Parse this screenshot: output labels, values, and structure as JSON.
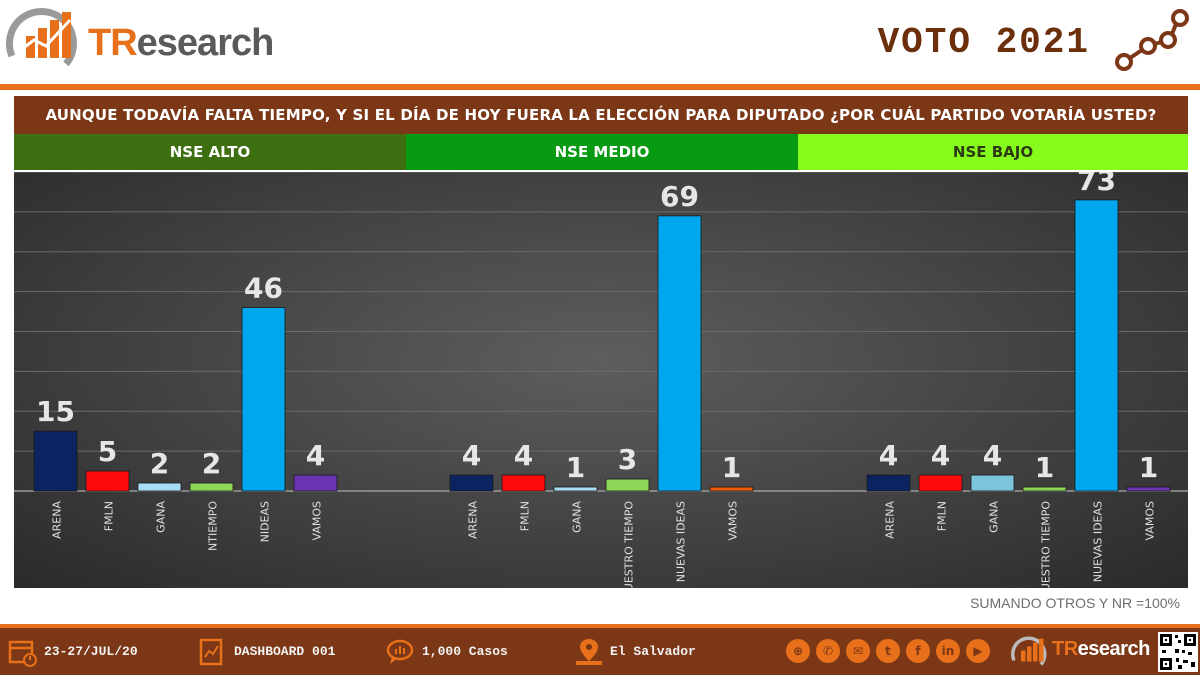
{
  "header": {
    "brand_prefix": "TR",
    "brand_suffix": "esearch",
    "title": "VOTO 2021"
  },
  "question": "AUNQUE TODAVÍA FALTA TIEMPO, Y SI EL DÍA DE HOY FUERA LA ELECCIÓN PARA DIPUTADO ¿POR CUÁL PARTIDO VOTARÍA USTED?",
  "segments": [
    "NSE ALTO",
    "NSE MEDIO",
    "NSE BAJO"
  ],
  "footnote": "SUMANDO OTROS Y NR =100%",
  "footer": {
    "date": "23-27/JUL/20",
    "dashboard": "DASHBOARD 001",
    "cases": "1,000 Casos",
    "location": "El Salvador",
    "brand_prefix": "TR",
    "brand_suffix": "esearch"
  },
  "colors": {
    "orange": "#e8701a",
    "brown": "#7b3716",
    "nse_alto": "#3d6e10",
    "nse_medio": "#089a12",
    "nse_bajo": "#86fc1c"
  },
  "chart_data": {
    "type": "bar",
    "ylim": [
      0,
      80
    ],
    "grid": true,
    "groups": [
      {
        "name": "NSE ALTO",
        "categories": [
          "ARENA",
          "FMLN",
          "GANA",
          "NTIEMPO",
          "NIDEAS",
          "VAMOS"
        ],
        "values": [
          15,
          5,
          2,
          2,
          46,
          4
        ],
        "colors": [
          "#0b2461",
          "#ff0a0a",
          "#a9dcf5",
          "#8ed65a",
          "#00a7ec",
          "#6b34b2"
        ]
      },
      {
        "name": "NSE MEDIO",
        "categories": [
          "ARENA",
          "FMLN",
          "GANA",
          "NUESTRO TIEMPO",
          "NUEVAS IDEAS",
          "VAMOS"
        ],
        "values": [
          4,
          4,
          1,
          3,
          69,
          1
        ],
        "colors": [
          "#0b2461",
          "#ff0a0a",
          "#a9dcf5",
          "#8ed65a",
          "#00a7ec",
          "#f0580a"
        ]
      },
      {
        "name": "NSE BAJO",
        "categories": [
          "ARENA",
          "FMLN",
          "GANA",
          "NUESTRO TIEMPO",
          "NUEVAS IDEAS",
          "VAMOS"
        ],
        "values": [
          4,
          4,
          4,
          1,
          73,
          1
        ],
        "colors": [
          "#0b2461",
          "#ff0a0a",
          "#7cc4dc",
          "#8ed65a",
          "#00a7ec",
          "#6b34b2"
        ]
      }
    ]
  }
}
